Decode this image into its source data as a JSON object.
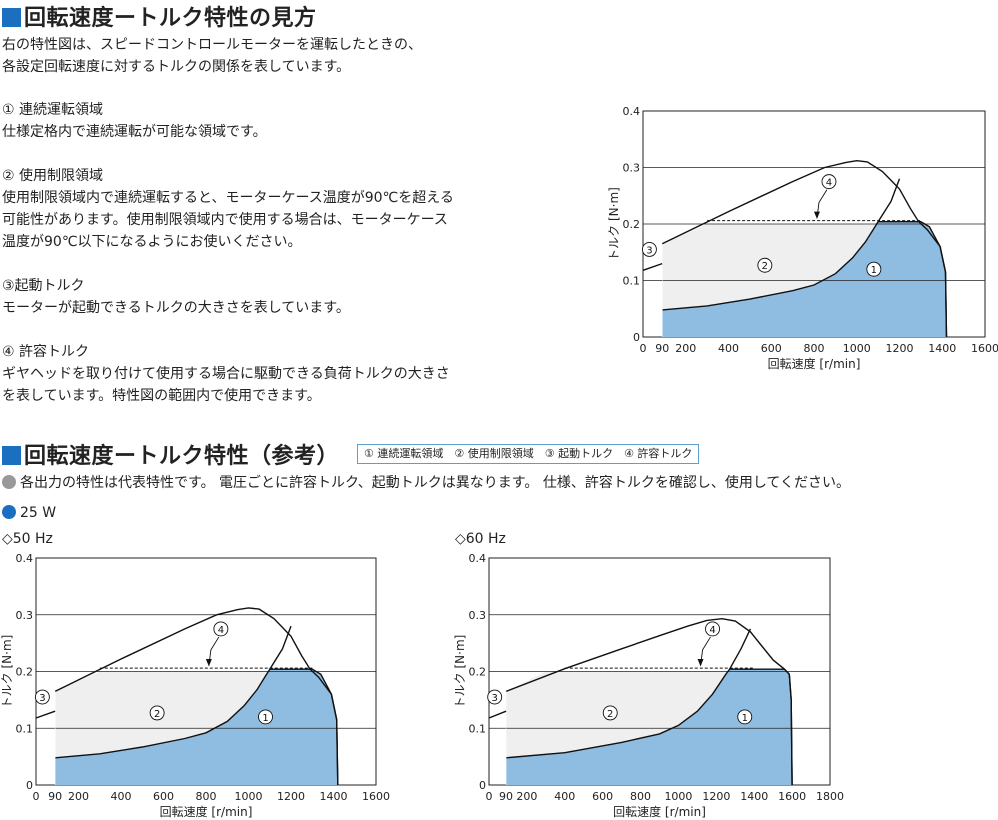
{
  "section1": {
    "title": "回転速度ートルク特性の見方",
    "intro": [
      "右の特性図は、スピードコントロールモーターを運転したときの、",
      "各設定回転速度に対するトルクの関係を表しています。"
    ],
    "items": [
      {
        "label": "① 連続運転領域",
        "lines": [
          "仕様定格内で連続運転が可能な領域です。"
        ]
      },
      {
        "label": "② 使用制限領域",
        "lines": [
          "使用制限領域内で連続運転すると、モーターケース温度が90℃を超える",
          "可能性があります。使用制限領域内で使用する場合は、モーターケース",
          "温度が90℃以下になるようにお使いください。"
        ]
      },
      {
        "label": "③起動トルク",
        "lines": [
          "モーターが起動できるトルクの大きさを表しています。"
        ]
      },
      {
        "label": "④ 許容トルク",
        "lines": [
          "ギヤヘッドを取り付けて使用する場合に駆動できる負荷トルクの大きさ",
          "を表しています。特性図の範囲内で使用できます。"
        ]
      }
    ]
  },
  "section2": {
    "title": "回転速度ートルク特性（参考）",
    "legend": "① 連続運転領域　② 使用制限領域　③ 起動トルク　④ 許容トルク",
    "note": "各出力の特性は代表特性です。 電圧ごとに許容トルク、起動トルクは異なります。 仕様、許容トルクを確認し、使用してください。",
    "model": "25 W",
    "sub50": "◇50 Hz",
    "sub60": "◇60 Hz"
  },
  "colors": {
    "accent": "#1a6fc0",
    "region1": "#8fbde2",
    "region2": "#efefef",
    "note_dot": "#999999"
  },
  "chart_data": [
    {
      "id": "explain",
      "type": "area",
      "xlabel": "回転速度 [r/min]",
      "ylabel": "トルク [N·m]",
      "xlim": [
        0,
        1600
      ],
      "ylim": [
        0,
        0.4
      ],
      "xticks": [
        0,
        90,
        200,
        400,
        600,
        800,
        1000,
        1200,
        1400,
        1600
      ],
      "yticks": [
        0,
        0.1,
        0.2,
        0.3,
        0.4
      ],
      "continuous_region": [
        [
          90,
          0.048
        ],
        [
          300,
          0.055
        ],
        [
          500,
          0.067
        ],
        [
          700,
          0.082
        ],
        [
          800,
          0.092
        ],
        [
          900,
          0.112
        ],
        [
          980,
          0.14
        ],
        [
          1040,
          0.168
        ],
        [
          1080,
          0.192
        ],
        [
          1100,
          0.204
        ],
        [
          1300,
          0.204
        ],
        [
          1340,
          0.195
        ],
        [
          1390,
          0.16
        ],
        [
          1415,
          0.115
        ],
        [
          1420,
          0
        ],
        [
          90,
          0
        ]
      ],
      "limited_region": [
        [
          90,
          0.165
        ],
        [
          300,
          0.2
        ],
        [
          1100,
          0.2
        ],
        [
          1080,
          0.192
        ],
        [
          1040,
          0.168
        ],
        [
          980,
          0.14
        ],
        [
          900,
          0.112
        ],
        [
          800,
          0.092
        ],
        [
          700,
          0.082
        ],
        [
          500,
          0.067
        ],
        [
          300,
          0.055
        ],
        [
          90,
          0.048
        ]
      ],
      "torque_curve": [
        [
          90,
          0.165
        ],
        [
          400,
          0.222
        ],
        [
          700,
          0.275
        ],
        [
          850,
          0.3
        ],
        [
          950,
          0.309
        ],
        [
          1000,
          0.312
        ],
        [
          1050,
          0.31
        ],
        [
          1120,
          0.293
        ],
        [
          1200,
          0.262
        ],
        [
          1250,
          0.228
        ],
        [
          1290,
          0.204
        ],
        [
          1330,
          0.19
        ],
        [
          1390,
          0.16
        ],
        [
          1415,
          0.115
        ],
        [
          1420,
          0
        ]
      ],
      "permissible_torque": [
        [
          300,
          0.206
        ],
        [
          1300,
          0.206
        ]
      ],
      "permissible_curve": [
        [
          1100,
          0.204
        ],
        [
          1160,
          0.24
        ],
        [
          1200,
          0.28
        ]
      ],
      "starting_mark": [
        [
          0,
          0.118
        ],
        [
          90,
          0.13
        ]
      ],
      "labels": [
        {
          "text": "①",
          "x": 1080,
          "y": 0.12
        },
        {
          "text": "②",
          "x": 570,
          "y": 0.127
        },
        {
          "text": "③",
          "x": 30,
          "y": 0.155
        },
        {
          "text": "④",
          "x": 870,
          "y": 0.275
        }
      ]
    },
    {
      "id": "hz50",
      "type": "area",
      "xlabel": "回転速度 [r/min]",
      "ylabel": "トルク [N·m]",
      "xlim": [
        0,
        1600
      ],
      "ylim": [
        0,
        0.4
      ],
      "xticks": [
        0,
        90,
        200,
        400,
        600,
        800,
        1000,
        1200,
        1400,
        1600
      ],
      "yticks": [
        0,
        0.1,
        0.2,
        0.3,
        0.4
      ],
      "continuous_region": [
        [
          90,
          0.048
        ],
        [
          300,
          0.055
        ],
        [
          500,
          0.067
        ],
        [
          700,
          0.082
        ],
        [
          800,
          0.092
        ],
        [
          900,
          0.112
        ],
        [
          980,
          0.14
        ],
        [
          1040,
          0.168
        ],
        [
          1080,
          0.192
        ],
        [
          1100,
          0.204
        ],
        [
          1300,
          0.204
        ],
        [
          1340,
          0.195
        ],
        [
          1390,
          0.16
        ],
        [
          1415,
          0.115
        ],
        [
          1420,
          0
        ],
        [
          90,
          0
        ]
      ],
      "limited_region": [
        [
          90,
          0.165
        ],
        [
          300,
          0.2
        ],
        [
          1100,
          0.2
        ],
        [
          1080,
          0.192
        ],
        [
          1040,
          0.168
        ],
        [
          980,
          0.14
        ],
        [
          900,
          0.112
        ],
        [
          800,
          0.092
        ],
        [
          700,
          0.082
        ],
        [
          500,
          0.067
        ],
        [
          300,
          0.055
        ],
        [
          90,
          0.048
        ]
      ],
      "torque_curve": [
        [
          90,
          0.165
        ],
        [
          400,
          0.222
        ],
        [
          700,
          0.275
        ],
        [
          850,
          0.3
        ],
        [
          950,
          0.309
        ],
        [
          1000,
          0.312
        ],
        [
          1050,
          0.31
        ],
        [
          1120,
          0.293
        ],
        [
          1200,
          0.262
        ],
        [
          1250,
          0.228
        ],
        [
          1290,
          0.204
        ],
        [
          1330,
          0.19
        ],
        [
          1390,
          0.16
        ],
        [
          1415,
          0.115
        ],
        [
          1420,
          0
        ]
      ],
      "permissible_torque": [
        [
          300,
          0.206
        ],
        [
          1300,
          0.206
        ]
      ],
      "permissible_curve": [
        [
          1100,
          0.204
        ],
        [
          1160,
          0.24
        ],
        [
          1200,
          0.28
        ]
      ],
      "starting_mark": [
        [
          0,
          0.118
        ],
        [
          90,
          0.13
        ]
      ],
      "labels": [
        {
          "text": "①",
          "x": 1080,
          "y": 0.12
        },
        {
          "text": "②",
          "x": 570,
          "y": 0.127
        },
        {
          "text": "③",
          "x": 30,
          "y": 0.155
        },
        {
          "text": "④",
          "x": 870,
          "y": 0.275
        }
      ]
    },
    {
      "id": "hz60",
      "type": "area",
      "xlabel": "回転速度 [r/min]",
      "ylabel": "トルク [N·m]",
      "xlim": [
        0,
        1800
      ],
      "ylim": [
        0,
        0.4
      ],
      "xticks": [
        0,
        90,
        200,
        400,
        600,
        800,
        1000,
        1200,
        1400,
        1600,
        1800
      ],
      "yticks": [
        0,
        0.1,
        0.2,
        0.3,
        0.4
      ],
      "continuous_region": [
        [
          90,
          0.048
        ],
        [
          400,
          0.057
        ],
        [
          700,
          0.075
        ],
        [
          900,
          0.09
        ],
        [
          1000,
          0.105
        ],
        [
          1100,
          0.13
        ],
        [
          1180,
          0.16
        ],
        [
          1250,
          0.195
        ],
        [
          1270,
          0.204
        ],
        [
          1560,
          0.204
        ],
        [
          1585,
          0.195
        ],
        [
          1595,
          0.15
        ],
        [
          1600,
          0
        ],
        [
          90,
          0
        ]
      ],
      "limited_region": [
        [
          90,
          0.165
        ],
        [
          300,
          0.2
        ],
        [
          1270,
          0.2
        ],
        [
          1250,
          0.195
        ],
        [
          1180,
          0.16
        ],
        [
          1100,
          0.13
        ],
        [
          1000,
          0.105
        ],
        [
          900,
          0.09
        ],
        [
          700,
          0.075
        ],
        [
          400,
          0.057
        ],
        [
          90,
          0.048
        ]
      ],
      "torque_curve": [
        [
          90,
          0.165
        ],
        [
          400,
          0.205
        ],
        [
          700,
          0.24
        ],
        [
          900,
          0.263
        ],
        [
          1050,
          0.28
        ],
        [
          1150,
          0.29
        ],
        [
          1230,
          0.293
        ],
        [
          1300,
          0.289
        ],
        [
          1380,
          0.27
        ],
        [
          1440,
          0.245
        ],
        [
          1500,
          0.22
        ],
        [
          1560,
          0.204
        ],
        [
          1585,
          0.195
        ],
        [
          1595,
          0.15
        ],
        [
          1600,
          0
        ]
      ],
      "permissible_torque": [
        [
          400,
          0.206
        ],
        [
          1400,
          0.206
        ]
      ],
      "permissible_curve": [
        [
          1270,
          0.204
        ],
        [
          1330,
          0.24
        ],
        [
          1380,
          0.275
        ]
      ],
      "starting_mark": [
        [
          0,
          0.118
        ],
        [
          90,
          0.13
        ]
      ],
      "labels": [
        {
          "text": "①",
          "x": 1350,
          "y": 0.12
        },
        {
          "text": "②",
          "x": 640,
          "y": 0.127
        },
        {
          "text": "③",
          "x": 30,
          "y": 0.155
        },
        {
          "text": "④",
          "x": 1180,
          "y": 0.275
        }
      ]
    }
  ]
}
